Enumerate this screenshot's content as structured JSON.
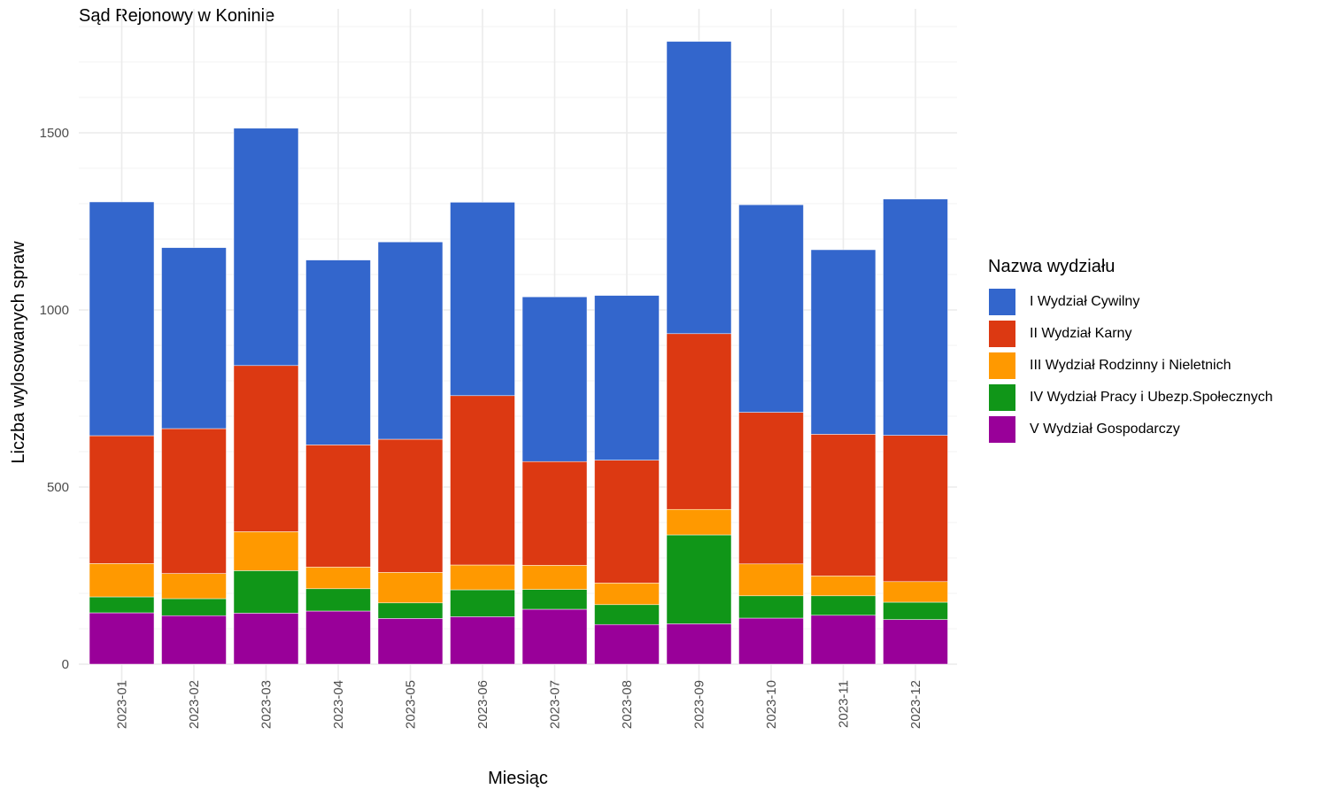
{
  "chart_data": {
    "type": "bar",
    "stacked": true,
    "title": "Sąd Rejonowy w Koninie",
    "xlabel": "Miesiąc",
    "ylabel": "Liczba wylosowanych spraw",
    "ylim": [
      0,
      1800
    ],
    "yticks": [
      0,
      500,
      1000,
      1500
    ],
    "grid": true,
    "legend_title": "Nazwa wydziału",
    "legend_position": "right",
    "categories": [
      "2023-01",
      "2023-02",
      "2023-03",
      "2023-04",
      "2023-05",
      "2023-06",
      "2023-07",
      "2023-08",
      "2023-09",
      "2023-10",
      "2023-11",
      "2023-12"
    ],
    "series": [
      {
        "name": "V Wydział Gospodarczy",
        "color": "#990099",
        "values": [
          145,
          137,
          144,
          150,
          129,
          134,
          155,
          112,
          114,
          130,
          138,
          126
        ]
      },
      {
        "name": "IV Wydział Pracy i Ubezp.Społecznych",
        "color": "#109618",
        "values": [
          45,
          48,
          120,
          63,
          44,
          76,
          56,
          56,
          251,
          63,
          55,
          49
        ]
      },
      {
        "name": "III Wydział Rodzinny i Nieletnich",
        "color": "#ff9900",
        "values": [
          94,
          71,
          110,
          61,
          86,
          70,
          68,
          61,
          72,
          90,
          56,
          58
        ]
      },
      {
        "name": "II Wydział Karny",
        "color": "#dc3912",
        "values": [
          361,
          409,
          469,
          345,
          376,
          478,
          293,
          347,
          496,
          428,
          400,
          413
        ]
      },
      {
        "name": "I Wydział Cywilny",
        "color": "#3366cc",
        "values": [
          660,
          511,
          670,
          522,
          557,
          546,
          465,
          465,
          825,
          586,
          521,
          667
        ]
      }
    ]
  },
  "legend_order": [
    {
      "name": "I Wydział Cywilny",
      "color": "#3366cc"
    },
    {
      "name": "II Wydział Karny",
      "color": "#dc3912"
    },
    {
      "name": "III Wydział Rodzinny i Nieletnich",
      "color": "#ff9900"
    },
    {
      "name": "IV Wydział Pracy i Ubezp.Społecznych",
      "color": "#109618"
    },
    {
      "name": "V Wydział Gospodarczy",
      "color": "#990099"
    }
  ]
}
